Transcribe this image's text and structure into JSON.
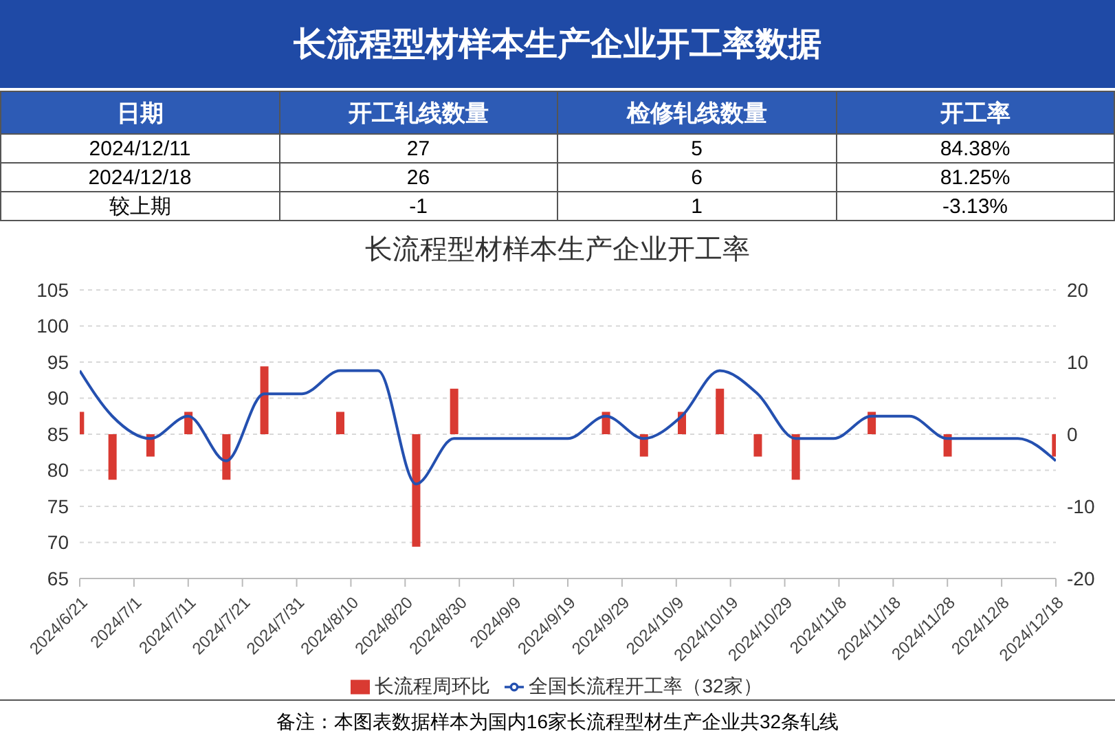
{
  "chart_data": [
    {
      "type": "other",
      "title": "长流程型材样本生产企业开工率数据",
      "ylabel": "日期",
      "categories": [
        "开工轧线数量",
        "检修轧线数量",
        "开工率"
      ],
      "series": [
        {
          "name": "2024/12/11",
          "values": [
            27,
            5,
            84.38
          ],
          "value_labels": [
            "27",
            "5",
            "84.38%"
          ]
        },
        {
          "name": "2024/12/18",
          "values": [
            26,
            6,
            81.25
          ],
          "value_labels": [
            "26",
            "6",
            "81.25%"
          ]
        },
        {
          "name": "较上期",
          "values": [
            -1,
            1,
            -3.13
          ],
          "value_labels": [
            "-1",
            "1",
            "-3.13%"
          ]
        }
      ]
    },
    {
      "type": "bar",
      "title": "长流程型材样本生产企业开工率",
      "x": [
        "2024-06-21",
        "2024-06-27",
        "2024-07-04",
        "2024-07-11",
        "2024-07-18",
        "2024-07-25",
        "2024-08-01",
        "2024-08-08",
        "2024-08-15",
        "2024-08-22",
        "2024-08-29",
        "2024-09-05",
        "2024-09-12",
        "2024-09-19",
        "2024-09-26",
        "2024-10-03",
        "2024-10-10",
        "2024-10-17",
        "2024-10-24",
        "2024-10-31",
        "2024-11-07",
        "2024-11-14",
        "2024-11-21",
        "2024-11-28",
        "2024-12-05",
        "2024-12-11",
        "2024-12-18"
      ],
      "series": [
        {
          "name": "长流程周环比",
          "type": "bar",
          "axis": "y2",
          "color": "#d93a32",
          "values": [
            3.1,
            -6.3,
            -3.1,
            3.1,
            -6.3,
            9.4,
            0,
            3.1,
            0,
            -15.6,
            6.3,
            0,
            0,
            0,
            3.1,
            -3.1,
            3.1,
            6.3,
            -3.1,
            -6.3,
            0,
            3.1,
            0,
            -3.1,
            0,
            0,
            -3.1
          ]
        },
        {
          "name": "全国长流程开工率（32家）",
          "type": "line",
          "axis": "y",
          "color": "#2450b0",
          "values": [
            93.8,
            87.5,
            84.4,
            87.5,
            81.3,
            90.6,
            90.6,
            93.8,
            93.8,
            78.1,
            84.4,
            84.4,
            84.4,
            84.4,
            87.5,
            84.4,
            87.5,
            93.8,
            90.6,
            84.4,
            84.4,
            87.5,
            87.5,
            84.4,
            84.4,
            84.4,
            81.3
          ]
        }
      ],
      "xlim": [
        "2024-06-21",
        "2024-12-18"
      ],
      "xticks": [
        {
          "value": "2024-06-21",
          "label": "2024/6/21"
        },
        {
          "value": "2024-07-01",
          "label": "2024/7/1"
        },
        {
          "value": "2024-07-11",
          "label": "2024/7/11"
        },
        {
          "value": "2024-07-21",
          "label": "2024/7/21"
        },
        {
          "value": "2024-07-31",
          "label": "2024/7/31"
        },
        {
          "value": "2024-08-10",
          "label": "2024/8/10"
        },
        {
          "value": "2024-08-20",
          "label": "2024/8/20"
        },
        {
          "value": "2024-08-30",
          "label": "2024/8/30"
        },
        {
          "value": "2024-09-09",
          "label": "2024/9/9"
        },
        {
          "value": "2024-09-19",
          "label": "2024/9/19"
        },
        {
          "value": "2024-09-29",
          "label": "2024/9/29"
        },
        {
          "value": "2024-10-09",
          "label": "2024/10/9"
        },
        {
          "value": "2024-10-19",
          "label": "2024/10/19"
        },
        {
          "value": "2024-10-29",
          "label": "2024/10/29"
        },
        {
          "value": "2024-11-08",
          "label": "2024/11/8"
        },
        {
          "value": "2024-11-18",
          "label": "2024/11/18"
        },
        {
          "value": "2024-11-28",
          "label": "2024/11/28"
        },
        {
          "value": "2024-12-08",
          "label": "2024/12/8"
        },
        {
          "value": "2024-12-18",
          "label": "2024/12/18"
        }
      ],
      "ylim": [
        65,
        105
      ],
      "yticks": [
        65,
        70,
        75,
        80,
        85,
        90,
        95,
        100,
        105
      ],
      "y2lim": [
        -20,
        20
      ],
      "y2ticks": [
        -20,
        -10,
        0,
        10,
        20
      ],
      "grid": "y",
      "legend": "bottom",
      "marker": "none",
      "line_style": "solid",
      "annotations": [
        "备注：本图表数据样本为国内16家长流程型材生产企业共32条轧线"
      ]
    }
  ]
}
